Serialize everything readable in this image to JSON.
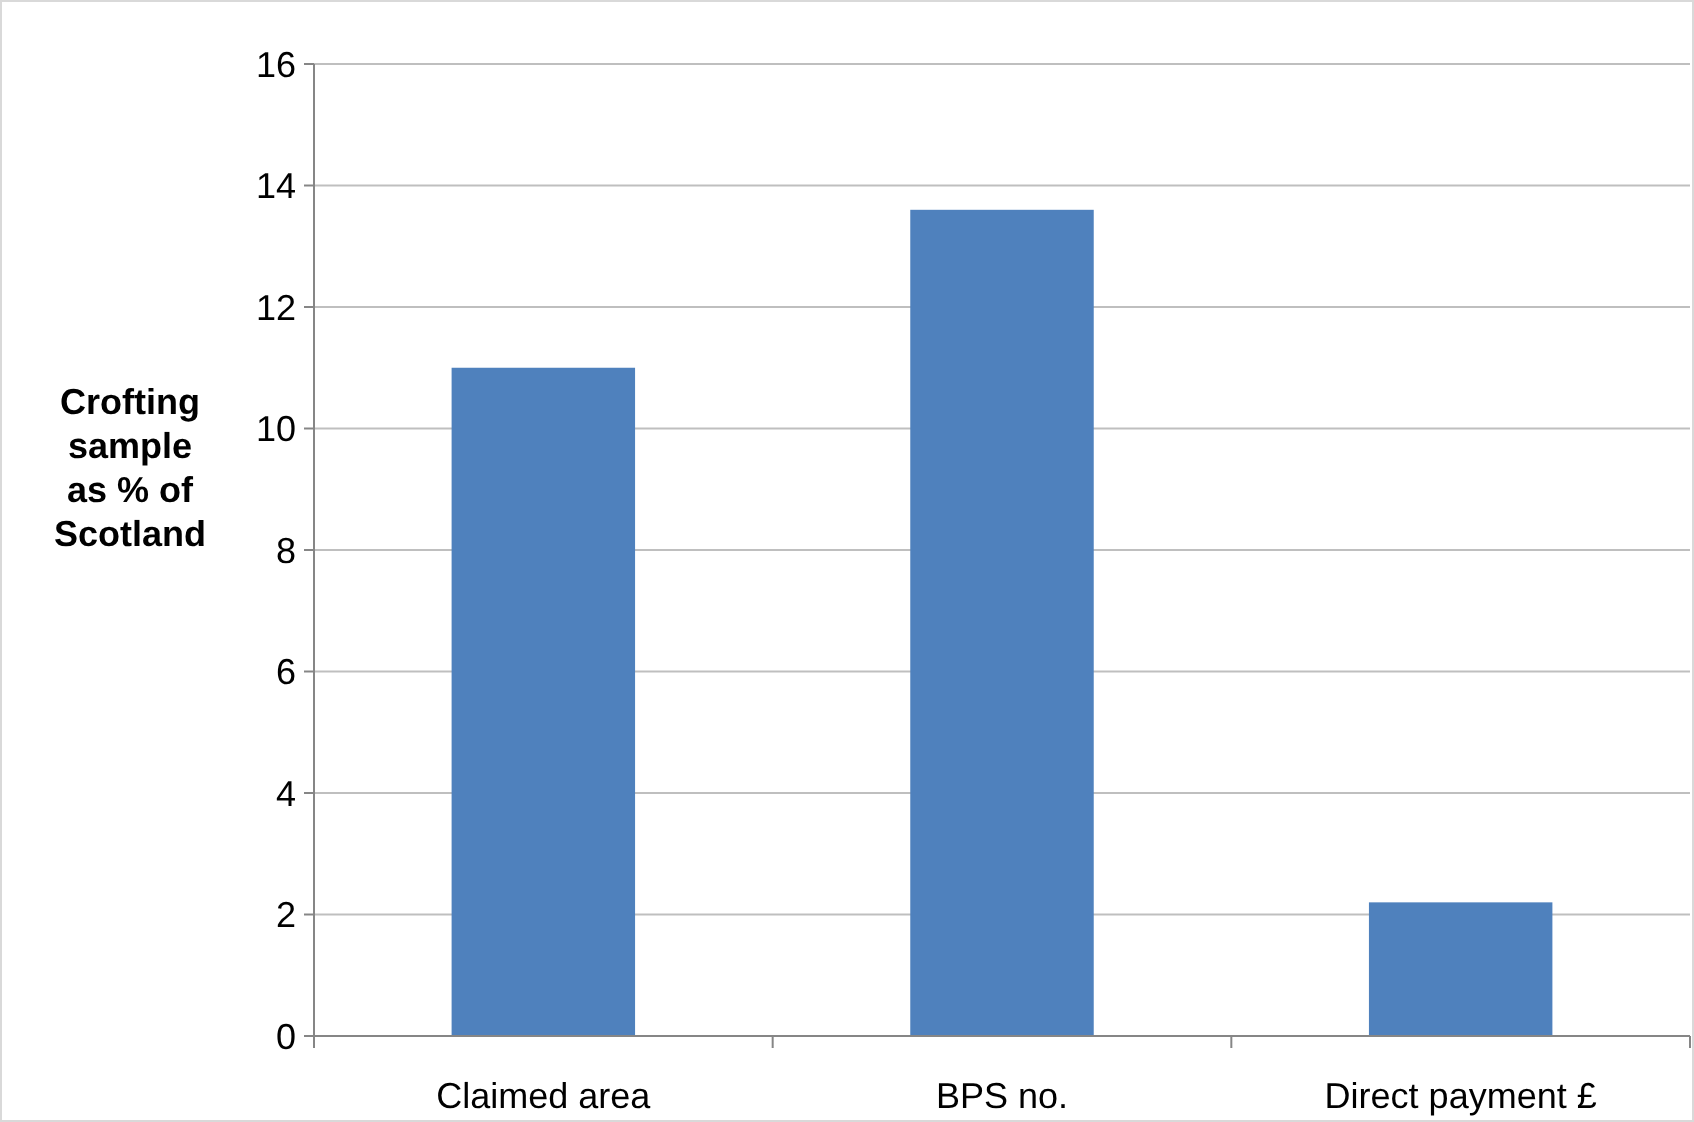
{
  "chart_data": {
    "type": "bar",
    "ylabel": "Crofting sample as % of Scotland",
    "categories": [
      "Claimed area",
      "BPS no.",
      "Direct payment £"
    ],
    "values": [
      11.0,
      13.6,
      2.2
    ],
    "color": "#4f81bd",
    "ylim": [
      0,
      16
    ],
    "yticks": [
      0,
      2,
      4,
      6,
      8,
      10,
      12,
      14,
      16
    ],
    "grid": "y"
  }
}
